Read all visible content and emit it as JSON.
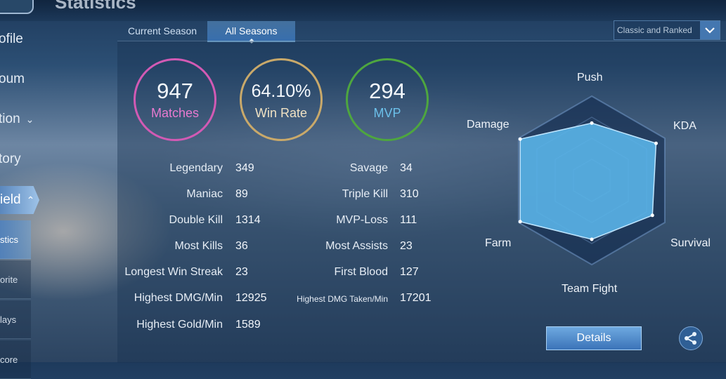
{
  "header": {
    "title_fragment": "Statistics"
  },
  "sidebar": {
    "items": [
      {
        "label": "ofile",
        "top": 0
      },
      {
        "label": "oum"
      },
      {
        "label": "tion"
      },
      {
        "label": "tory"
      },
      {
        "label": "ield"
      }
    ],
    "subitems": [
      {
        "label": "stics"
      },
      {
        "label": "orite"
      },
      {
        "label": "lays"
      },
      {
        "label": "core"
      }
    ]
  },
  "tabs": [
    {
      "label": "Current Season"
    },
    {
      "label": "All Seasons"
    }
  ],
  "filter": {
    "selected": "Classic and Ranked"
  },
  "summary": {
    "matches": {
      "value": "947",
      "label": "Matches",
      "color": "#d25ab4"
    },
    "win_rate": {
      "value": "64.10%",
      "label": "Win Rate",
      "color": "#c9a96a"
    },
    "mvp": {
      "value": "294",
      "label": "MVP",
      "color": "#4ea63f"
    }
  },
  "stats_left": [
    {
      "label": "Legendary",
      "value": "349"
    },
    {
      "label": "Maniac",
      "value": "89"
    },
    {
      "label": "Double Kill",
      "value": "1314"
    },
    {
      "label": "Most Kills",
      "value": "36"
    },
    {
      "label": "Longest Win Streak",
      "value": "23"
    },
    {
      "label": "Highest DMG/Min",
      "value": "12925"
    },
    {
      "label": "Highest Gold/Min",
      "value": "1589"
    }
  ],
  "stats_right": [
    {
      "label": "Savage",
      "value": "34"
    },
    {
      "label": "Triple Kill",
      "value": "310"
    },
    {
      "label": "MVP-Loss",
      "value": "111"
    },
    {
      "label": "Most Assists",
      "value": "23"
    },
    {
      "label": "First Blood",
      "value": "127"
    },
    {
      "label": "Highest DMG Taken/Min",
      "value": "17201"
    }
  ],
  "radar": {
    "axes": [
      "Push",
      "KDA",
      "Survival",
      "Team Fight",
      "Farm",
      "Damage"
    ],
    "values": [
      0.68,
      0.88,
      0.83,
      0.7,
      0.98,
      0.98
    ],
    "fill_color": "#5ab4e8"
  },
  "buttons": {
    "details": "Details"
  }
}
